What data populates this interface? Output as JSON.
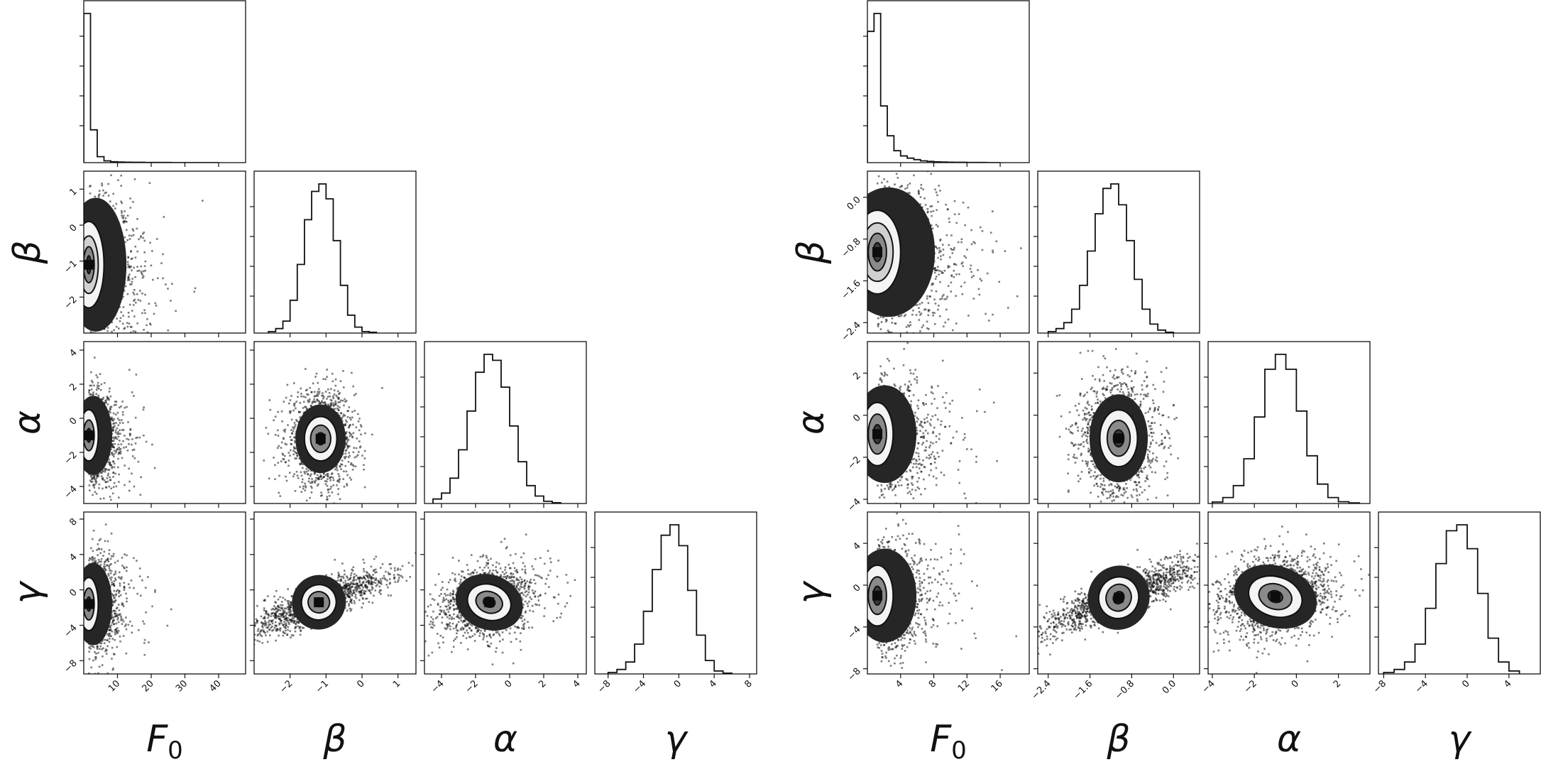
{
  "figure": {
    "panels": [
      "left-corner-plot",
      "right-corner-plot"
    ]
  },
  "chart_data": [
    {
      "type": "corner",
      "title": "",
      "variables": [
        {
          "key": "F0",
          "label": "F",
          "subscript": "0",
          "range": [
            0,
            48
          ],
          "ticks": [
            10,
            20,
            30,
            40
          ],
          "tick_labels": [
            "10",
            "20",
            "30",
            "40"
          ]
        },
        {
          "key": "beta",
          "label": "β",
          "range": [
            -3,
            1.5
          ],
          "ticks": [
            -2,
            -1,
            0,
            1
          ],
          "tick_labels": [
            "−2",
            "−1",
            "0",
            "1"
          ]
        },
        {
          "key": "alpha",
          "label": "α",
          "range": [
            -5,
            4.5
          ],
          "ticks": [
            -4,
            -2,
            0,
            2,
            4
          ],
          "tick_labels": [
            "−4",
            "−2",
            "0",
            "2",
            "4"
          ]
        },
        {
          "key": "gamma",
          "label": "γ",
          "range": [
            -9.5,
            8.8
          ],
          "ticks": [
            -8,
            -4,
            0,
            4,
            8
          ],
          "tick_labels": [
            "−8",
            "−4",
            "0",
            "4",
            "8"
          ]
        }
      ],
      "marginals": {
        "F0": {
          "bin_edges": [
            0,
            2,
            4,
            6,
            8,
            10,
            12,
            14,
            16,
            18,
            20,
            22,
            24,
            26,
            28,
            30,
            32,
            34,
            36,
            38,
            40
          ],
          "counts": [
            1.0,
            0.22,
            0.04,
            0.012,
            0.006,
            0.004,
            0.003,
            0.002,
            0.002,
            0.001,
            0.001,
            0.001,
            0.001,
            0.0,
            0.0,
            0.0,
            0.0,
            0.0,
            0.0,
            0.0
          ]
        },
        "beta": {
          "bin_edges": [
            -2.6,
            -2.4,
            -2.2,
            -2.0,
            -1.8,
            -1.6,
            -1.4,
            -1.2,
            -1.0,
            -0.8,
            -0.6,
            -0.4,
            -0.2,
            0.0,
            0.2,
            0.4
          ],
          "counts": [
            0.01,
            0.03,
            0.08,
            0.22,
            0.46,
            0.76,
            0.95,
            1.0,
            0.9,
            0.62,
            0.32,
            0.12,
            0.04,
            0.01,
            0.005
          ]
        },
        "alpha": {
          "bin_edges": [
            -4.5,
            -4.0,
            -3.5,
            -3.0,
            -2.5,
            -2.0,
            -1.5,
            -1.0,
            -0.5,
            0.0,
            0.5,
            1.0,
            1.5,
            2.0,
            2.5,
            3.0
          ],
          "counts": [
            0.03,
            0.07,
            0.17,
            0.36,
            0.62,
            0.88,
            1.0,
            0.96,
            0.78,
            0.52,
            0.28,
            0.12,
            0.05,
            0.015,
            0.005
          ]
        },
        "gamma": {
          "bin_edges": [
            -8,
            -7,
            -6,
            -5,
            -4,
            -3,
            -2,
            -1,
            0,
            1,
            2,
            3,
            4,
            5,
            6
          ],
          "counts": [
            0.01,
            0.03,
            0.08,
            0.2,
            0.42,
            0.7,
            0.93,
            1.0,
            0.86,
            0.56,
            0.26,
            0.09,
            0.02,
            0.005
          ]
        }
      },
      "joint": {
        "beta_F0": {
          "peak": [
            1.5,
            -1.1
          ],
          "contour_radii": [
            [
              0.6,
              0.25
            ],
            [
              1.6,
              0.5
            ],
            [
              2.8,
              0.8
            ],
            [
              4.5,
              1.2
            ]
          ],
          "cloud": "skewed-right"
        },
        "alpha_F0": {
          "peak": [
            1.5,
            -1.0
          ],
          "contour_radii": [
            [
              0.6,
              0.4
            ],
            [
              1.6,
              0.9
            ],
            [
              2.8,
              1.5
            ]
          ],
          "cloud": "skewed-right"
        },
        "gamma_F0": {
          "peak": [
            1.5,
            -1.6
          ],
          "contour_radii": [
            [
              0.6,
              0.8
            ],
            [
              1.6,
              1.8
            ],
            [
              2.8,
              3.0
            ]
          ],
          "cloud": "skewed-right"
        },
        "alpha_beta": {
          "peak": [
            -1.15,
            -1.2
          ],
          "contour_radii": [
            [
              0.12,
              0.35
            ],
            [
              0.28,
              0.8
            ],
            [
              0.45,
              1.3
            ]
          ]
        },
        "gamma_beta": {
          "peak": [
            -1.2,
            -1.4
          ],
          "contour_radii": [
            [
              0.12,
              0.5
            ],
            [
              0.3,
              1.2
            ],
            [
              0.48,
              2.0
            ]
          ],
          "rotation": 25
        },
        "gamma_alpha": {
          "peak": [
            -1.2,
            -1.4
          ],
          "contour_radii": [
            [
              0.35,
              0.55
            ],
            [
              0.8,
              1.2
            ],
            [
              1.3,
              2.0
            ]
          ],
          "rotation": 20
        }
      }
    },
    {
      "type": "corner",
      "title": "",
      "variables": [
        {
          "key": "F0",
          "label": "F",
          "subscript": "0",
          "range": [
            0,
            19.5
          ],
          "ticks": [
            4,
            8,
            12,
            16
          ],
          "tick_labels": [
            "4",
            "8",
            "12",
            "16"
          ]
        },
        {
          "key": "beta",
          "label": "β",
          "range": [
            -2.6,
            0.5
          ],
          "ticks": [
            -2.4,
            -1.6,
            -0.8,
            0.0
          ],
          "tick_labels": [
            "−2.4",
            "−1.6",
            "−0.8",
            "0.0"
          ]
        },
        {
          "key": "alpha",
          "label": "α",
          "range": [
            -4.2,
            3.5
          ],
          "ticks": [
            -4,
            -2,
            0,
            2
          ],
          "tick_labels": [
            "−4",
            "−2",
            "0",
            "2"
          ]
        },
        {
          "key": "gamma",
          "label": "γ",
          "range": [
            -8.5,
            7.0
          ],
          "ticks": [
            -8,
            -4,
            0,
            4
          ],
          "tick_labels": [
            "−8",
            "−4",
            "0",
            "4"
          ]
        }
      ],
      "marginals": {
        "F0": {
          "bin_edges": [
            0,
            0.8,
            1.6,
            2.4,
            3.2,
            4.0,
            4.8,
            5.6,
            6.4,
            7.2,
            8.0,
            8.8,
            9.6,
            10.4,
            11.2,
            12.0,
            12.8,
            13.6,
            14.4,
            15.2,
            16.0
          ],
          "counts": [
            0.88,
            1.0,
            0.38,
            0.18,
            0.08,
            0.045,
            0.03,
            0.02,
            0.012,
            0.008,
            0.005,
            0.004,
            0.003,
            0.002,
            0.002,
            0.001,
            0.001,
            0.001,
            0.0,
            0.0
          ]
        },
        "beta": {
          "bin_edges": [
            -2.4,
            -2.25,
            -2.1,
            -1.95,
            -1.8,
            -1.65,
            -1.5,
            -1.35,
            -1.2,
            -1.05,
            -0.9,
            -0.75,
            -0.6,
            -0.45,
            -0.3,
            -0.15,
            0.0
          ],
          "counts": [
            0.01,
            0.03,
            0.07,
            0.16,
            0.32,
            0.55,
            0.8,
            0.97,
            1.0,
            0.86,
            0.62,
            0.36,
            0.16,
            0.06,
            0.02,
            0.005
          ]
        },
        "alpha": {
          "bin_edges": [
            -4.0,
            -3.5,
            -3.0,
            -2.5,
            -2.0,
            -1.5,
            -1.0,
            -0.5,
            0.0,
            0.5,
            1.0,
            1.5,
            2.0,
            2.5,
            3.0
          ],
          "counts": [
            0.01,
            0.04,
            0.12,
            0.3,
            0.58,
            0.9,
            1.0,
            0.9,
            0.62,
            0.32,
            0.13,
            0.04,
            0.012,
            0.004
          ]
        },
        "gamma": {
          "bin_edges": [
            -8,
            -7,
            -6,
            -5,
            -4,
            -3,
            -2,
            -1,
            0,
            1,
            2,
            3,
            4,
            5
          ],
          "counts": [
            0.01,
            0.03,
            0.08,
            0.2,
            0.44,
            0.74,
            0.96,
            1.0,
            0.84,
            0.54,
            0.24,
            0.08,
            0.02
          ]
        }
      },
      "joint": {
        "beta_F0": {
          "peak": [
            1.2,
            -1.05
          ],
          "contour_radii": [
            [
              0.5,
              0.18
            ],
            [
              1.1,
              0.36
            ],
            [
              1.9,
              0.56
            ],
            [
              2.8,
              0.8
            ]
          ],
          "cloud": "skewed-right"
        },
        "alpha_F0": {
          "peak": [
            1.2,
            -0.9
          ],
          "contour_radii": [
            [
              0.5,
              0.45
            ],
            [
              1.1,
              0.95
            ],
            [
              1.9,
              1.5
            ]
          ],
          "cloud": "skewed-right"
        },
        "gamma_F0": {
          "peak": [
            1.2,
            -1.0
          ],
          "contour_radii": [
            [
              0.5,
              0.9
            ],
            [
              1.1,
              1.8
            ],
            [
              1.9,
              2.9
            ]
          ],
          "cloud": "skewed-right"
        },
        "alpha_beta": {
          "peak": [
            -1.05,
            -1.1
          ],
          "contour_radii": [
            [
              0.1,
              0.4
            ],
            [
              0.22,
              0.85
            ],
            [
              0.36,
              1.35
            ]
          ]
        },
        "gamma_beta": {
          "peak": [
            -1.05,
            -1.2
          ],
          "contour_radii": [
            [
              0.1,
              0.6
            ],
            [
              0.24,
              1.3
            ],
            [
              0.38,
              2.0
            ]
          ],
          "rotation": 22
        },
        "gamma_alpha": {
          "peak": [
            -1.0,
            -1.1
          ],
          "contour_radii": [
            [
              0.35,
              0.55
            ],
            [
              0.8,
              1.2
            ],
            [
              1.3,
              1.9
            ]
          ],
          "rotation": 18
        }
      }
    }
  ]
}
